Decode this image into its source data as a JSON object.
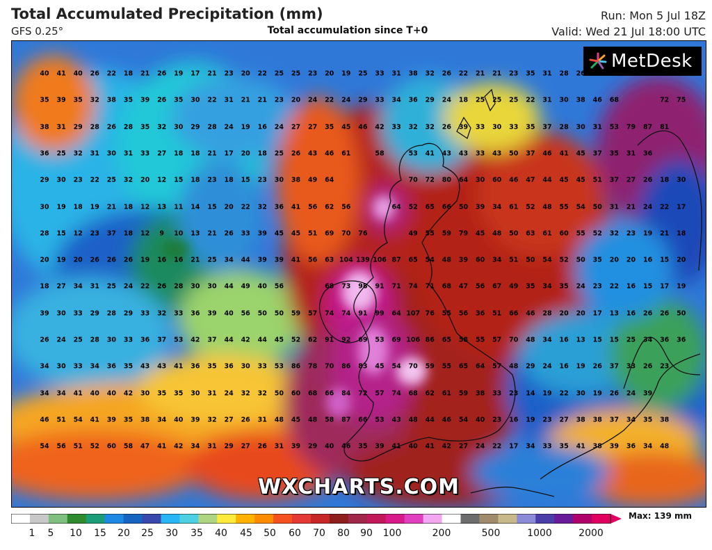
{
  "header": {
    "title": "Total Accumulated Precipitation (mm)",
    "model": "GFS 0.25°",
    "subtitle": "Total accumulation since T+0",
    "run": "Run: Mon 5 Jul 18Z",
    "valid": "Valid: Wed 21 Jul 18:00 UTC"
  },
  "branding": {
    "logo_text": "MetDesk",
    "watermark": "WXCHARTS.COM"
  },
  "legend": {
    "max_label": "Max: 139 mm",
    "ticks": [
      "1",
      "5",
      "10",
      "15",
      "20",
      "25",
      "30",
      "35",
      "40",
      "45",
      "50",
      "60",
      "70",
      "80",
      "90",
      "100",
      "200",
      "500",
      "1000",
      "2000"
    ],
    "colors": [
      "#ffffff",
      "#c8c8c8",
      "#7fbf7f",
      "#2e8b2e",
      "#1b9e77",
      "#1e88e5",
      "#1565c0",
      "#3949ab",
      "#29b6f6",
      "#4dd0e1",
      "#aed581",
      "#ffeb3b",
      "#ffb300",
      "#fb8c00",
      "#f4511e",
      "#e53935",
      "#c62828",
      "#8e1e1e",
      "#a0264a",
      "#c2185b",
      "#d81b8a",
      "#e040c0",
      "#f2a8f0",
      "#ffffff",
      "#6d6d6d",
      "#a08b6c",
      "#c8b98a",
      "#8b8bd8",
      "#4b3ea8",
      "#6a1b9a",
      "#b0006a",
      "#e00060"
    ]
  },
  "grid_values": [
    [
      "40",
      "41",
      "40",
      "26",
      "22",
      "18",
      "21",
      "26",
      "19",
      "17",
      "21",
      "23",
      "20",
      "22",
      "25",
      "25",
      "23",
      "20",
      "19",
      "25",
      "33",
      "31",
      "38",
      "32",
      "26",
      "22",
      "21",
      "21",
      "23",
      "35",
      "31",
      "28",
      "26"
    ],
    [
      "35",
      "39",
      "35",
      "32",
      "38",
      "35",
      "39",
      "26",
      "35",
      "30",
      "22",
      "31",
      "21",
      "21",
      "23",
      "20",
      "24",
      "22",
      "24",
      "29",
      "33",
      "34",
      "36",
      "29",
      "24",
      "18",
      "25",
      "25",
      "25",
      "22",
      "31",
      "30",
      "38",
      "46",
      "68",
      "",
      "",
      "72",
      "75"
    ],
    [
      "38",
      "31",
      "29",
      "28",
      "26",
      "28",
      "35",
      "32",
      "30",
      "29",
      "28",
      "24",
      "19",
      "16",
      "24",
      "27",
      "27",
      "35",
      "45",
      "46",
      "42",
      "33",
      "32",
      "32",
      "26",
      "39",
      "33",
      "30",
      "33",
      "35",
      "37",
      "28",
      "30",
      "31",
      "53",
      "79",
      "87",
      "81"
    ],
    [
      "36",
      "25",
      "32",
      "31",
      "30",
      "31",
      "33",
      "27",
      "18",
      "18",
      "21",
      "17",
      "20",
      "18",
      "25",
      "26",
      "43",
      "46",
      "61",
      "",
      "58",
      "",
      "53",
      "41",
      "43",
      "43",
      "33",
      "43",
      "50",
      "37",
      "46",
      "41",
      "45",
      "37",
      "35",
      "31",
      "36",
      "",
      ""
    ],
    [
      "29",
      "30",
      "23",
      "22",
      "25",
      "32",
      "20",
      "12",
      "15",
      "18",
      "23",
      "18",
      "15",
      "23",
      "30",
      "38",
      "49",
      "64",
      "",
      "",
      "",
      "",
      "70",
      "72",
      "80",
      "64",
      "30",
      "60",
      "46",
      "47",
      "44",
      "45",
      "45",
      "51",
      "37",
      "27",
      "26",
      "18",
      "30"
    ],
    [
      "30",
      "19",
      "18",
      "19",
      "21",
      "18",
      "12",
      "13",
      "11",
      "14",
      "15",
      "20",
      "22",
      "32",
      "36",
      "41",
      "56",
      "62",
      "56",
      "",
      "",
      "64",
      "52",
      "65",
      "66",
      "50",
      "39",
      "34",
      "61",
      "52",
      "48",
      "55",
      "54",
      "50",
      "31",
      "21",
      "24",
      "22",
      "17"
    ],
    [
      "28",
      "15",
      "12",
      "23",
      "37",
      "18",
      "12",
      "9",
      "10",
      "13",
      "21",
      "26",
      "33",
      "39",
      "45",
      "45",
      "51",
      "69",
      "70",
      "76",
      "",
      "",
      "49",
      "55",
      "59",
      "79",
      "45",
      "48",
      "50",
      "63",
      "61",
      "60",
      "55",
      "52",
      "32",
      "23",
      "19",
      "21",
      "18"
    ],
    [
      "20",
      "19",
      "20",
      "26",
      "26",
      "26",
      "19",
      "16",
      "16",
      "21",
      "25",
      "34",
      "44",
      "39",
      "39",
      "41",
      "56",
      "63",
      "104",
      "139",
      "106",
      "87",
      "65",
      "54",
      "48",
      "39",
      "60",
      "34",
      "51",
      "50",
      "54",
      "52",
      "50",
      "35",
      "20",
      "20",
      "16",
      "15",
      "20"
    ],
    [
      "18",
      "27",
      "34",
      "31",
      "25",
      "24",
      "22",
      "26",
      "28",
      "30",
      "30",
      "44",
      "49",
      "40",
      "56",
      "",
      "",
      "68",
      "73",
      "98",
      "91",
      "71",
      "74",
      "71",
      "68",
      "47",
      "56",
      "67",
      "49",
      "35",
      "34",
      "35",
      "24",
      "23",
      "22",
      "16",
      "15",
      "17",
      "19"
    ],
    [
      "39",
      "30",
      "33",
      "29",
      "28",
      "29",
      "33",
      "32",
      "33",
      "36",
      "39",
      "40",
      "56",
      "50",
      "50",
      "59",
      "57",
      "74",
      "74",
      "91",
      "99",
      "64",
      "107",
      "76",
      "55",
      "56",
      "36",
      "51",
      "66",
      "46",
      "28",
      "20",
      "20",
      "17",
      "13",
      "16",
      "26",
      "26",
      "50"
    ],
    [
      "26",
      "24",
      "25",
      "28",
      "30",
      "33",
      "36",
      "37",
      "53",
      "42",
      "37",
      "44",
      "42",
      "44",
      "45",
      "52",
      "62",
      "91",
      "92",
      "69",
      "53",
      "69",
      "106",
      "86",
      "65",
      "58",
      "55",
      "57",
      "70",
      "48",
      "34",
      "16",
      "13",
      "15",
      "15",
      "25",
      "34",
      "36",
      "36"
    ],
    [
      "34",
      "30",
      "33",
      "34",
      "36",
      "35",
      "43",
      "43",
      "41",
      "36",
      "35",
      "36",
      "30",
      "33",
      "53",
      "86",
      "78",
      "70",
      "86",
      "83",
      "45",
      "54",
      "70",
      "59",
      "55",
      "65",
      "64",
      "57",
      "48",
      "29",
      "24",
      "16",
      "19",
      "26",
      "37",
      "33",
      "26",
      "23"
    ],
    [
      "34",
      "34",
      "41",
      "40",
      "40",
      "42",
      "30",
      "35",
      "35",
      "30",
      "31",
      "24",
      "32",
      "32",
      "50",
      "60",
      "68",
      "66",
      "84",
      "72",
      "57",
      "74",
      "68",
      "62",
      "61",
      "59",
      "38",
      "33",
      "23",
      "14",
      "19",
      "22",
      "30",
      "19",
      "26",
      "24",
      "39"
    ],
    [
      "46",
      "51",
      "54",
      "41",
      "39",
      "35",
      "38",
      "34",
      "40",
      "39",
      "32",
      "27",
      "26",
      "31",
      "48",
      "45",
      "48",
      "58",
      "87",
      "66",
      "53",
      "43",
      "48",
      "44",
      "46",
      "54",
      "40",
      "23",
      "16",
      "19",
      "23",
      "27",
      "38",
      "38",
      "37",
      "34",
      "35",
      "38"
    ],
    [
      "54",
      "56",
      "51",
      "52",
      "60",
      "58",
      "47",
      "41",
      "42",
      "34",
      "31",
      "29",
      "27",
      "26",
      "31",
      "39",
      "29",
      "40",
      "46",
      "35",
      "39",
      "41",
      "40",
      "41",
      "42",
      "27",
      "24",
      "22",
      "17",
      "34",
      "33",
      "35",
      "41",
      "38",
      "39",
      "36",
      "34",
      "48"
    ]
  ]
}
